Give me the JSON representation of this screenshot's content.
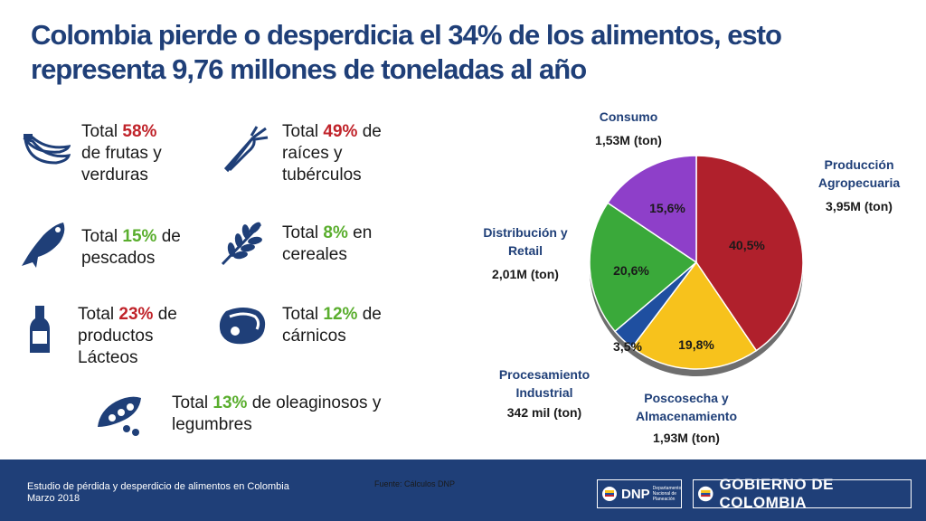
{
  "title": "Colombia pierde o desperdicia el 34% de los alimentos, esto representa 9,76 millones de toneladas al año",
  "colors": {
    "red": "#c0232a",
    "green": "#5aae2e",
    "title": "#1f3f78"
  },
  "items": [
    {
      "pre": "Total ",
      "value": "58%",
      "post_inline": "",
      "rest": "de frutas y verduras",
      "color": "#c0232a",
      "icon": "bananas-icon"
    },
    {
      "pre": "Total ",
      "value": "49%",
      "post_inline": " de",
      "rest": "raíces y tubérculos",
      "color": "#c0232a",
      "icon": "carrot-icon"
    },
    {
      "pre": "Total ",
      "value": "15%",
      "post_inline": " de",
      "rest": "pescados",
      "color": "#5aae2e",
      "icon": "fish-icon"
    },
    {
      "pre": "Total ",
      "value": "8%",
      "post_inline": " en",
      "rest": "cereales",
      "color": "#5aae2e",
      "icon": "wheat-icon"
    },
    {
      "pre": "Total ",
      "value": "23%",
      "post_inline": " de",
      "rest": "productos Lácteos",
      "color": "#c0232a",
      "icon": "milk-bottle-icon"
    },
    {
      "pre": "Total ",
      "value": "12%",
      "post_inline": " de",
      "rest": "cárnicos",
      "color": "#5aae2e",
      "icon": "meat-icon"
    },
    {
      "pre": "Total ",
      "value": "13%",
      "post_inline": " de oleaginosos y",
      "rest": "legumbres",
      "color": "#5aae2e",
      "icon": "peas-icon"
    }
  ],
  "chart_data": {
    "type": "pie",
    "title": "",
    "slices": [
      {
        "name": "Producción Agropecuaria",
        "amount": "3,95M (ton)",
        "label": "40,5%",
        "value": 40.5,
        "color": "#b0202c"
      },
      {
        "name": "Poscosecha y Almacenamiento",
        "amount": "1,93M (ton)",
        "label": "19,8%",
        "value": 19.8,
        "color": "#f7c21c"
      },
      {
        "name": "Procesamiento Industrial",
        "amount": "342 mil (ton)",
        "label": "3,5%",
        "value": 3.5,
        "color": "#1f4fa0"
      },
      {
        "name": "Distribución y Retail",
        "amount": "2,01M (ton)",
        "label": "20,6%",
        "value": 20.6,
        "color": "#3aa93a"
      },
      {
        "name": "Consumo",
        "amount": "1,53M (ton)",
        "label": "15,6%",
        "value": 15.6,
        "color": "#8e3fc9"
      }
    ]
  },
  "labels": {
    "prod_1": "Producción",
    "prod_2": "Agropecuaria",
    "prod_amt": "3,95M (ton)",
    "pos_1": "Poscosecha y",
    "pos_2": "Almacenamiento",
    "pos_amt": "1,93M (ton)",
    "proc_1": "Procesamiento",
    "proc_2": "Industrial",
    "proc_amt": "342 mil (ton)",
    "dist_1": "Distribución y",
    "dist_2": "Retail",
    "dist_amt": "2,01M (ton)",
    "cons_1": "Consumo",
    "cons_amt": "1,53M (ton)"
  },
  "footer": {
    "study": "Estudio de pérdida y desperdicio de alimentos en Colombia",
    "date": "Marzo 2018",
    "source": "Fuente: Cálculos DNP",
    "dnp": "DNP",
    "dnp_sub": "Departamento Nacional de Planeación",
    "gobierno": "GOBIERNO DE COLOMBIA"
  }
}
